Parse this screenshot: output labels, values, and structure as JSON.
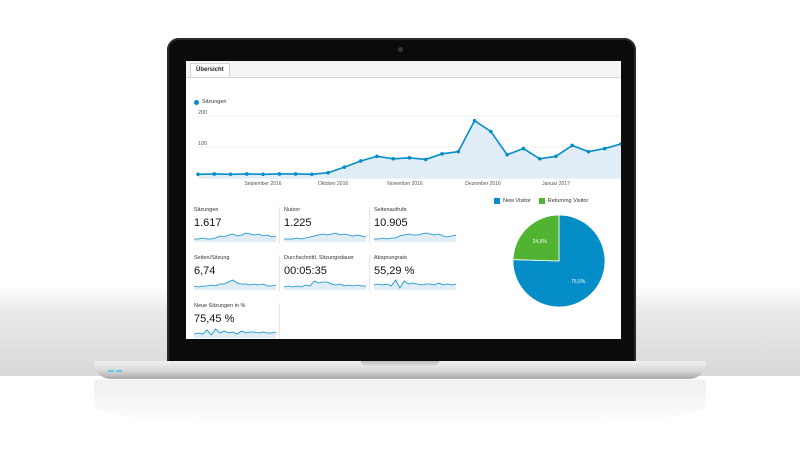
{
  "tabs": [
    {
      "label": "Übersicht"
    }
  ],
  "line_chart": {
    "legend": "Sitzungen",
    "y_ticks": [
      "200",
      "100"
    ],
    "x_labels": [
      "September 2016",
      "Oktober 2016",
      "November 2016",
      "Dezember 2016",
      "Januar 2017"
    ],
    "color": "#058dc7",
    "fill": "#e1edf6",
    "values": [
      12,
      13,
      12,
      13,
      12,
      13,
      13,
      12,
      17,
      35,
      55,
      70,
      62,
      65,
      60,
      78,
      85,
      185,
      150,
      75,
      95,
      62,
      70,
      105,
      85,
      95,
      110
    ]
  },
  "metrics": [
    {
      "label": "Sitzungen",
      "value": "1.617"
    },
    {
      "label": "Nutzer",
      "value": "1.225"
    },
    {
      "label": "Seitenaufrufe",
      "value": "10.905"
    },
    {
      "label": "Seiten/Sitzung",
      "value": "6,74"
    },
    {
      "label": "Durchschnittl. Sitzungsdauer",
      "value": "00:05:35"
    },
    {
      "label": "Absprungrate",
      "value": "55,29 %"
    },
    {
      "label": "Neue Sitzungen in %",
      "value": "75,45 %"
    }
  ],
  "pie_chart": {
    "legend": [
      {
        "label": "New Visitor",
        "color": "#058dc7"
      },
      {
        "label": "Returning Visitor",
        "color": "#50b432"
      }
    ],
    "values": [
      75.5,
      24.5
    ],
    "labels": [
      "75,5%",
      "24,5%"
    ]
  }
}
